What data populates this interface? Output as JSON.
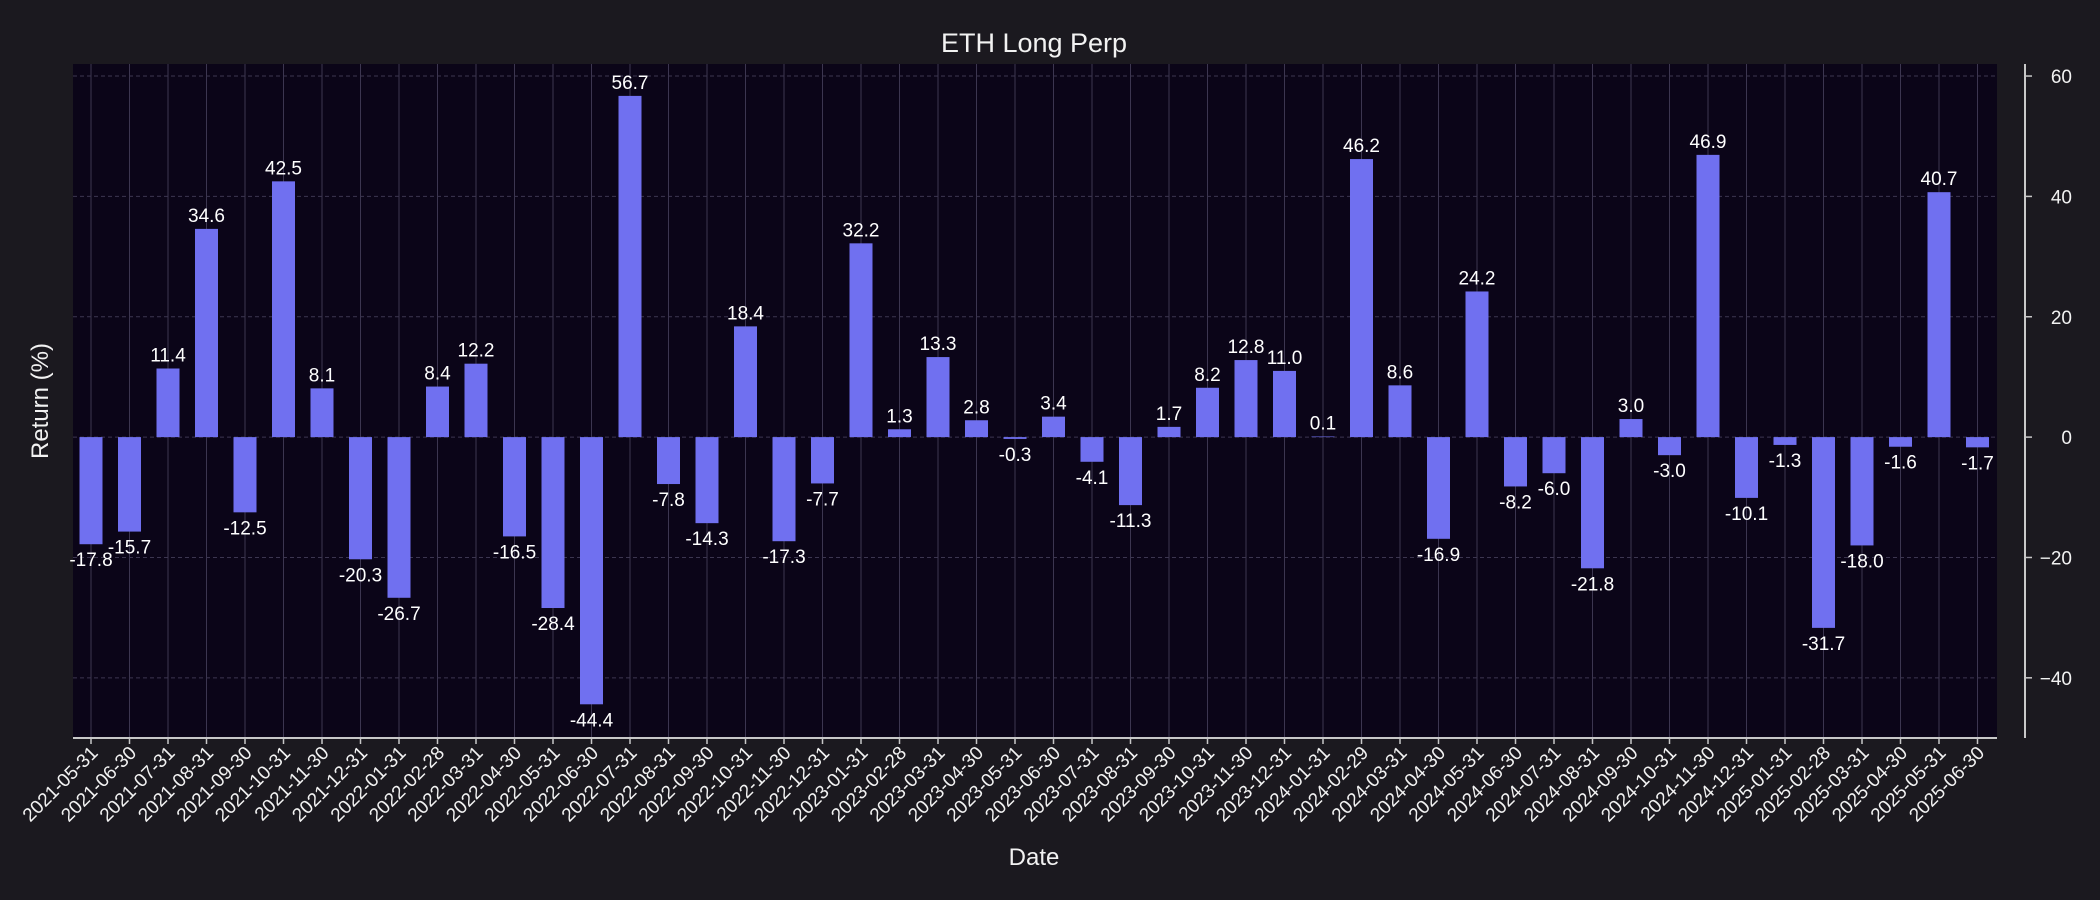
{
  "chart_data": {
    "type": "bar",
    "title": "ETH Long Perp",
    "xlabel": "Date",
    "ylabel": "Return (%)",
    "ylim": [
      -50,
      62
    ],
    "yticks": [
      -40,
      -20,
      0,
      20,
      40,
      60
    ],
    "y_axis_position": "right",
    "grid": true,
    "bar_color": "#7070f0",
    "plot_background": "#0b0518",
    "figure_background": "#1b191f",
    "categories": [
      "2021-05-31",
      "2021-06-30",
      "2021-07-31",
      "2021-08-31",
      "2021-09-30",
      "2021-10-31",
      "2021-11-30",
      "2021-12-31",
      "2022-01-31",
      "2022-02-28",
      "2022-03-31",
      "2022-04-30",
      "2022-05-31",
      "2022-06-30",
      "2022-07-31",
      "2022-08-31",
      "2022-09-30",
      "2022-10-31",
      "2022-11-30",
      "2022-12-31",
      "2023-01-31",
      "2023-02-28",
      "2023-03-31",
      "2023-04-30",
      "2023-05-31",
      "2023-06-30",
      "2023-07-31",
      "2023-08-31",
      "2023-09-30",
      "2023-10-31",
      "2023-11-30",
      "2023-12-31",
      "2024-01-31",
      "2024-02-29",
      "2024-03-31",
      "2024-04-30",
      "2024-05-31",
      "2024-06-30",
      "2024-07-31",
      "2024-08-31",
      "2024-09-30",
      "2024-10-31",
      "2024-11-30",
      "2024-12-31",
      "2025-01-31",
      "2025-02-28",
      "2025-03-31",
      "2025-04-30",
      "2025-05-31",
      "2025-06-30"
    ],
    "values": [
      -17.8,
      -15.7,
      11.4,
      34.6,
      -12.5,
      42.5,
      8.1,
      -20.3,
      -26.7,
      8.4,
      12.2,
      -16.5,
      -28.4,
      -44.4,
      56.7,
      -7.8,
      -14.3,
      18.4,
      -17.3,
      -7.7,
      32.2,
      1.3,
      13.3,
      2.8,
      -0.3,
      3.4,
      -4.1,
      -11.3,
      1.7,
      8.2,
      12.8,
      11.0,
      0.1,
      46.2,
      8.6,
      -16.9,
      24.2,
      -8.2,
      -6.0,
      -21.8,
      3.0,
      -3.0,
      46.9,
      -10.1,
      -1.3,
      -31.7,
      -18.0,
      -1.6,
      40.7,
      -1.7
    ],
    "value_labels": [
      "-17.8",
      "-15.7",
      "11.4",
      "34.6",
      "-12.5",
      "42.5",
      "8.1",
      "-20.3",
      "-26.7",
      "8.4",
      "12.2",
      "-16.5",
      "-28.4",
      "-44.4",
      "56.7",
      "-7.8",
      "-14.3",
      "18.4",
      "-17.3",
      "-7.7",
      "32.2",
      "1.3",
      "13.3",
      "2.8",
      "-0.3",
      "3.4",
      "-4.1",
      "-11.3",
      "1.7",
      "8.2",
      "12.8",
      "11.0",
      "0.1",
      "46.2",
      "8.6",
      "-16.9",
      "24.2",
      "-8.2",
      "-6.0",
      "-21.8",
      "3.0",
      "-3.0",
      "46.9",
      "-10.1",
      "-1.3",
      "-31.7",
      "-18.0",
      "-1.6",
      "40.7",
      "-1.7"
    ]
  }
}
